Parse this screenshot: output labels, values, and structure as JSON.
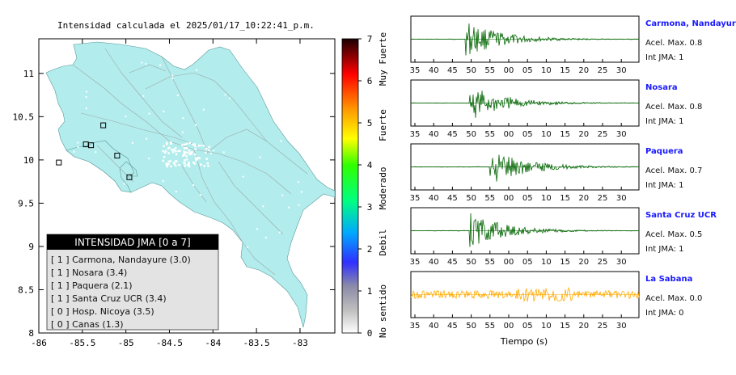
{
  "map": {
    "title": "Intensidad calculada el 2025/01/17_10:22:41_p.m.",
    "x_ticks": [
      "-86",
      "-85.5",
      "-85",
      "-84.5",
      "-84",
      "-83.5",
      "-83"
    ],
    "y_ticks": [
      "11",
      "10.5",
      "10",
      "9.5",
      "9",
      "8.5",
      "8"
    ],
    "land_color": "#b3ecec",
    "stations": [
      [
        -85.46,
        10.18
      ],
      [
        -85.77,
        9.97
      ],
      [
        -85.4,
        10.17
      ],
      [
        -84.96,
        9.8
      ],
      [
        -85.1,
        10.05
      ],
      [
        -85.26,
        10.4
      ]
    ]
  },
  "colorbar": {
    "ticks": [
      "0",
      "1",
      "2",
      "3",
      "4",
      "5",
      "6",
      "7"
    ],
    "categories": [
      "No sentido",
      "Debil",
      "Moderado",
      "Fuerte",
      "Muy Fuerte"
    ],
    "colors": [
      "#ffffff",
      "#8a8a8a",
      "#2222ff",
      "#00b0ff",
      "#00ff00",
      "#ffff00",
      "#ff8800",
      "#ff0000",
      "#200000"
    ]
  },
  "legend": {
    "title": "INTENSIDAD JMA [0 a 7]",
    "rows": [
      "[ 1 ]  Carmona, Nandayure (3.0)",
      "[ 1 ]  Nosara (3.4)",
      "[ 1 ]  Paquera (2.1)",
      "[ 1 ]  Santa Cruz UCR (3.4)",
      "[ 0 ]  Hosp. Nicoya (3.5)",
      "[ 0 ]  Canas (1.3)"
    ]
  },
  "seismograms": {
    "xlabel": "Tiempo (s)",
    "panels": [
      {
        "name": "Carmona, Nandayure",
        "acel": "Acel. Max. 0.8",
        "int": "Int JMA: 1",
        "ticks": [
          "35",
          "40",
          "45",
          "50",
          "55",
          "00",
          "05",
          "10",
          "15",
          "20",
          "25",
          "30"
        ],
        "onset": 13,
        "color": "#006400"
      },
      {
        "name": "Nosara",
        "acel": "Acel. Max. 0.8",
        "int": "Int JMA: 1",
        "ticks": [
          "35",
          "40",
          "45",
          "50",
          "55",
          "00",
          "05",
          "10",
          "15",
          "20",
          "25",
          "30"
        ],
        "onset": 14,
        "color": "#006400"
      },
      {
        "name": "Paquera",
        "acel": "Acel. Max. 0.7",
        "int": "Int JMA: 1",
        "ticks": [
          "35",
          "40",
          "45",
          "50",
          "55",
          "00",
          "05",
          "10",
          "15",
          "20",
          "25",
          "30"
        ],
        "onset": 19,
        "color": "#006400"
      },
      {
        "name": "Santa Cruz UCR",
        "acel": "Acel. Max. 0.5",
        "int": "Int JMA: 1",
        "ticks": [
          "35",
          "40",
          "45",
          "50",
          "55",
          "00",
          "05",
          "10",
          "15",
          "20",
          "25",
          "30"
        ],
        "onset": 14,
        "color": "#006400"
      },
      {
        "name": "La Sabana",
        "acel": "Acel. Max. 0.0",
        "int": "Int JMA: 0",
        "ticks": [
          "35",
          "40",
          "45",
          "50",
          "55",
          "00",
          "05",
          "10",
          "15",
          "20",
          "25",
          "30"
        ],
        "onset": 0,
        "color": "#ffaa00"
      }
    ]
  },
  "chart_data": [
    {
      "type": "scatter",
      "title": "Intensidad calculada el 2025/01/17_10:22:41_p.m.",
      "xlim": [
        -86,
        -82.6
      ],
      "ylim": [
        8,
        11.4
      ],
      "series": [
        {
          "name": "",
          "x": [
            -85.46,
            -85.77,
            -85.4,
            -84.96,
            -85.1,
            -85.26
          ],
          "y": [
            10.18,
            9.97,
            10.17,
            9.8,
            10.05,
            10.4
          ]
        }
      ]
    },
    {
      "type": "line",
      "xlabel": "Tiempo (s)",
      "series": [
        {
          "name": "Carmona, Nandayure",
          "peak": 0.8,
          "intensity": 1
        },
        {
          "name": "Nosara",
          "peak": 0.8,
          "intensity": 1
        },
        {
          "name": "Paquera",
          "peak": 0.7,
          "intensity": 1
        },
        {
          "name": "Santa Cruz UCR",
          "peak": 0.5,
          "intensity": 1
        },
        {
          "name": "La Sabana",
          "peak": 0.0,
          "intensity": 0
        }
      ]
    }
  ]
}
